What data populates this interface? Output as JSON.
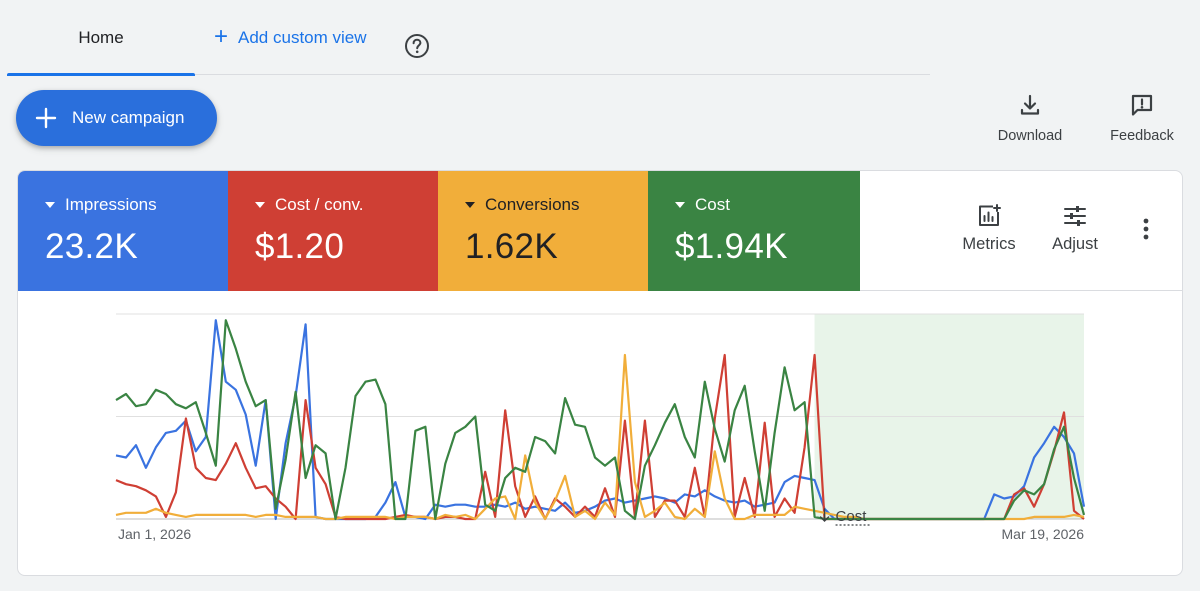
{
  "tabs": {
    "home_label": "Home",
    "add_custom_view_label": "Add custom view"
  },
  "new_campaign": {
    "label": "New campaign"
  },
  "top_actions": {
    "download_label": "Download",
    "feedback_label": "Feedback"
  },
  "metrics": [
    {
      "label": "Impressions",
      "value": "23.2K",
      "color": "#3a73e0"
    },
    {
      "label": "Cost / conv.",
      "value": "$1.20",
      "color": "#cf3f34"
    },
    {
      "label": "Conversions",
      "value": "1.62K",
      "color": "#f1ae3a"
    },
    {
      "label": "Cost",
      "value": "$1.94K",
      "color": "#3a8443"
    }
  ],
  "tools": {
    "metrics_label": "Metrics",
    "adjust_label": "Adjust"
  },
  "chart_data": {
    "type": "line",
    "x_start_label": "Jan 1, 2026",
    "x_end_label": "Mar 19, 2026",
    "annotation_label": "Cost",
    "highlight_range_index": [
      70,
      97
    ],
    "ylim": [
      0,
      100
    ],
    "series": [
      {
        "name": "Impressions",
        "color": "#3a73e0",
        "values": [
          31,
          30,
          36,
          25,
          35,
          42,
          43,
          48,
          33,
          40,
          97,
          67,
          63,
          51,
          26,
          58,
          0,
          37,
          60,
          95,
          1,
          0,
          0,
          0,
          0,
          0,
          1,
          8,
          18,
          1,
          1,
          0,
          7,
          6,
          7,
          7,
          6,
          6,
          7,
          6,
          8,
          5,
          6,
          5,
          4,
          8,
          3,
          4,
          6,
          9,
          10,
          8,
          9,
          10,
          11,
          10,
          8,
          12,
          11,
          14,
          11,
          9,
          8,
          9,
          6,
          7,
          8,
          18,
          21,
          20,
          19,
          5,
          0,
          0,
          0,
          0,
          0,
          0,
          0,
          0,
          0,
          0,
          0,
          0,
          0,
          0,
          0,
          0,
          12,
          10,
          11,
          16,
          30,
          37,
          45,
          40,
          32,
          6
        ]
      },
      {
        "name": "Cost / conv.",
        "color": "#cf3f34",
        "values": [
          19,
          17,
          16,
          14,
          11,
          1,
          13,
          49,
          25,
          20,
          19,
          27,
          37,
          25,
          15,
          16,
          10,
          6,
          0,
          58,
          25,
          17,
          1,
          0,
          0,
          0,
          0,
          0,
          1,
          2,
          1,
          1,
          0,
          1,
          1,
          0,
          0,
          23,
          1,
          53,
          16,
          1,
          11,
          0,
          10,
          6,
          1,
          6,
          1,
          15,
          1,
          48,
          1,
          48,
          1,
          9,
          9,
          1,
          25,
          1,
          49,
          80,
          1,
          20,
          1,
          47,
          1,
          10,
          3,
          35,
          80,
          0,
          0,
          0,
          0,
          0,
          0,
          0,
          0,
          0,
          0,
          0,
          0,
          0,
          0,
          0,
          0,
          0,
          0,
          0,
          12,
          15,
          6,
          17,
          33,
          52,
          4,
          0
        ]
      },
      {
        "name": "Conversions",
        "color": "#f1ae3a",
        "values": [
          2,
          3,
          3,
          3,
          5,
          3,
          2,
          1,
          2,
          2,
          2,
          2,
          2,
          2,
          1,
          2,
          2,
          1,
          1,
          1,
          1,
          0,
          0,
          1,
          1,
          1,
          1,
          1,
          0,
          1,
          1,
          1,
          0,
          2,
          1,
          2,
          0,
          5,
          10,
          11,
          0,
          31,
          8,
          0,
          9,
          21,
          1,
          4,
          0,
          8,
          2,
          80,
          18,
          1,
          4,
          8,
          1,
          0,
          5,
          1,
          33,
          10,
          0,
          0,
          2,
          2,
          2,
          2,
          6,
          5,
          4,
          3,
          2,
          1,
          1,
          0,
          0,
          0,
          0,
          0,
          0,
          0,
          0,
          0,
          0,
          0,
          0,
          0,
          0,
          0,
          0,
          0,
          1,
          1,
          1,
          1,
          2,
          1
        ]
      },
      {
        "name": "Cost",
        "color": "#3a8443",
        "values": [
          58,
          61,
          55,
          56,
          63,
          61,
          56,
          54,
          57,
          42,
          26,
          97,
          83,
          67,
          55,
          58,
          5,
          29,
          62,
          20,
          36,
          32,
          0,
          25,
          60,
          67,
          68,
          56,
          0,
          0,
          43,
          45,
          0,
          27,
          42,
          45,
          50,
          7,
          4,
          20,
          25,
          23,
          40,
          38,
          32,
          59,
          46,
          45,
          30,
          26,
          30,
          4,
          0,
          26,
          36,
          47,
          56,
          40,
          30,
          67,
          44,
          28,
          53,
          65,
          33,
          4,
          42,
          74,
          53,
          57,
          1,
          0,
          0,
          0,
          0,
          0,
          0,
          0,
          0,
          0,
          0,
          0,
          0,
          0,
          0,
          0,
          0,
          0,
          0,
          0,
          9,
          14,
          12,
          17,
          34,
          45,
          20,
          2
        ]
      }
    ]
  }
}
